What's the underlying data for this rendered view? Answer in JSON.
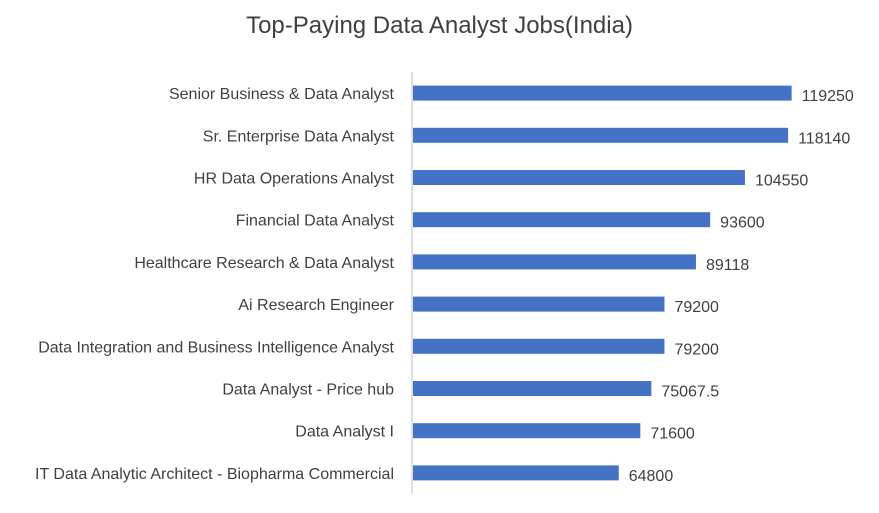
{
  "chart_data": {
    "type": "bar",
    "orientation": "horizontal",
    "title": "Top-Paying  Data Analyst Jobs(India)",
    "xlabel": "",
    "ylabel": "",
    "categories": [
      "Senior Business & Data Analyst",
      "Sr. Enterprise Data Analyst",
      "HR Data Operations Analyst",
      "Financial Data Analyst",
      "Healthcare Research & Data Analyst",
      "Ai Research Engineer",
      "Data Integration and Business Intelligence Analyst",
      "Data Analyst - Price hub",
      "Data Analyst I",
      "IT Data Analytic Architect - Biopharma Commercial"
    ],
    "values": [
      119250,
      118140,
      104550,
      93600,
      89118,
      79200,
      79200,
      75067.5,
      71600,
      64800
    ],
    "data_labels": [
      "119250",
      "118140",
      "104550",
      "93600",
      "89118",
      "79200",
      "79200",
      "75067.5",
      "71600",
      "64800"
    ],
    "xlim": [
      0,
      120000
    ],
    "grid": false,
    "legend": "none",
    "colors": {
      "bar": "#4472C4",
      "text": "#404040",
      "axis": "#BFBFBF"
    }
  }
}
